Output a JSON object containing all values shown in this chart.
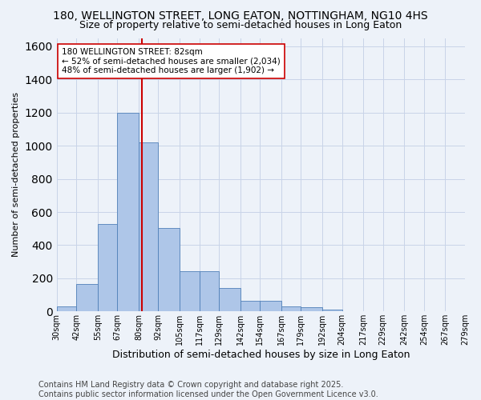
{
  "title": "180, WELLINGTON STREET, LONG EATON, NOTTINGHAM, NG10 4HS",
  "subtitle": "Size of property relative to semi-detached houses in Long Eaton",
  "xlabel": "Distribution of semi-detached houses by size in Long Eaton",
  "ylabel": "Number of semi-detached properties",
  "property_label": "180 WELLINGTON STREET: 82sqm",
  "smaller_pct": "52% of semi-detached houses are smaller (2,034)",
  "larger_pct": "48% of semi-detached houses are larger (1,902)",
  "property_size": 82,
  "bin_edges": [
    30,
    42,
    55,
    67,
    80,
    92,
    105,
    117,
    129,
    142,
    154,
    167,
    179,
    192,
    204,
    217,
    229,
    242,
    254,
    267,
    279
  ],
  "bin_labels": [
    "30sqm",
    "42sqm",
    "55sqm",
    "67sqm",
    "80sqm",
    "92sqm",
    "105sqm",
    "117sqm",
    "129sqm",
    "142sqm",
    "154sqm",
    "167sqm",
    "179sqm",
    "192sqm",
    "204sqm",
    "217sqm",
    "229sqm",
    "242sqm",
    "254sqm",
    "267sqm",
    "279sqm"
  ],
  "counts": [
    30,
    165,
    530,
    1200,
    1020,
    505,
    245,
    245,
    140,
    65,
    65,
    30,
    25,
    10,
    0,
    0,
    0,
    0,
    0,
    0
  ],
  "bar_color": "#aec6e8",
  "bar_edge_color": "#5080b8",
  "grid_color": "#c8d4e8",
  "background_color": "#edf2f9",
  "vline_color": "#cc0000",
  "vline_x": 82,
  "annotation_box_color": "#ffffff",
  "annotation_box_edge": "#cc0000",
  "footer": "Contains HM Land Registry data © Crown copyright and database right 2025.\nContains public sector information licensed under the Open Government Licence v3.0.",
  "ylim": [
    0,
    1650
  ],
  "title_fontsize": 10,
  "subtitle_fontsize": 9,
  "footer_fontsize": 7,
  "axis_label_fontsize": 8,
  "tick_fontsize": 7
}
